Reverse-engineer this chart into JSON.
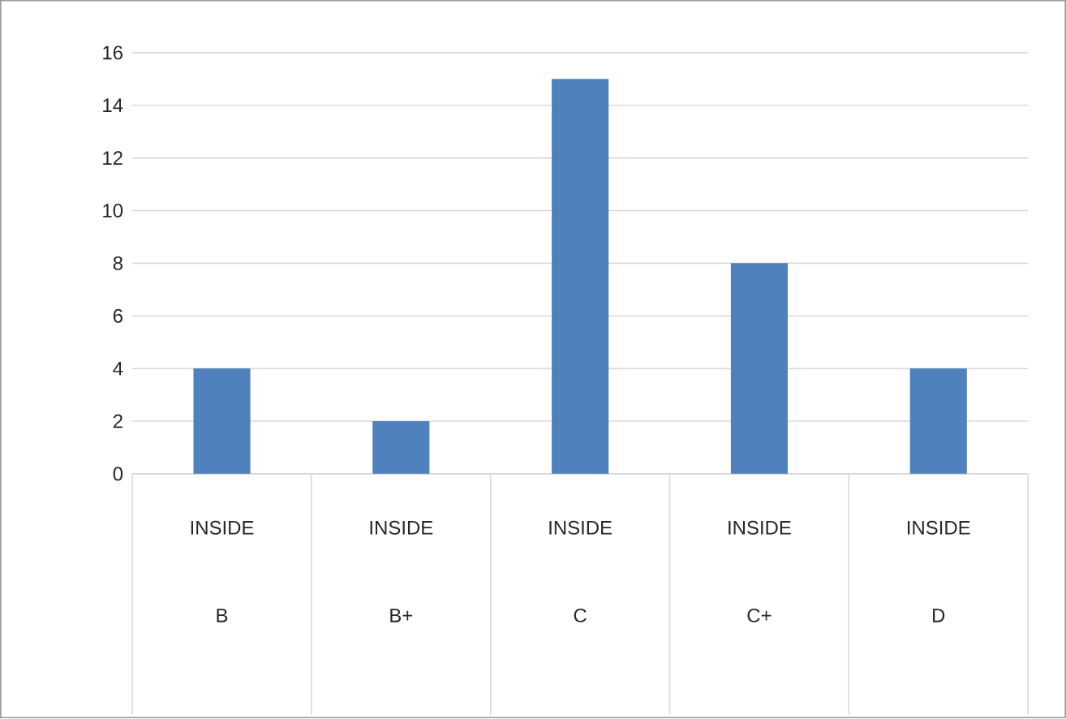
{
  "chart_data": {
    "type": "bar",
    "categories": [
      "B",
      "B+",
      "C",
      "C+",
      "D"
    ],
    "values": [
      4,
      2,
      15,
      8,
      4
    ],
    "color": "#4f81bd",
    "ylim": [
      0,
      16
    ],
    "yticks": [
      0,
      2,
      4,
      6,
      8,
      10,
      12,
      14,
      16
    ],
    "grid": "y",
    "annotations": [
      "INSIDE",
      "INSIDE",
      "INSIDE",
      "INSIDE",
      "INSIDE"
    ]
  }
}
